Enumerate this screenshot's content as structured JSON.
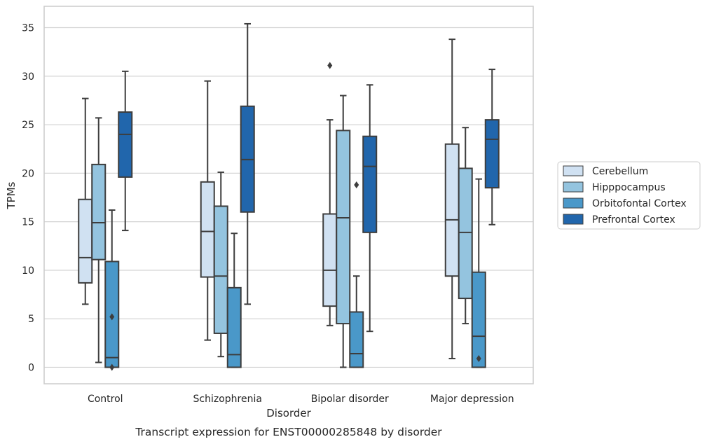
{
  "chart_data": {
    "type": "boxplot",
    "title": "",
    "caption": "Transcript expression for ENST00000285848 by disorder",
    "xlabel": "Disorder",
    "ylabel": "TPMs",
    "ylim": [
      -1.7,
      37.2
    ],
    "yticks": [
      0,
      5,
      10,
      15,
      20,
      25,
      30,
      35
    ],
    "grid": "horizontal",
    "legend_position": "right",
    "categories": [
      "Control",
      "Schizophrenia",
      "Bipolar disorder",
      "Major depression"
    ],
    "series": [
      {
        "name": "Cerebellum",
        "color": "#d0e1f2",
        "boxes": [
          {
            "whislo": 6.5,
            "q1": 8.7,
            "med": 11.3,
            "q3": 17.3,
            "whishi": 27.7,
            "fliers": []
          },
          {
            "whislo": 2.8,
            "q1": 9.3,
            "med": 14.0,
            "q3": 19.1,
            "whishi": 29.5,
            "fliers": []
          },
          {
            "whislo": 4.3,
            "q1": 6.3,
            "med": 10.0,
            "q3": 15.8,
            "whishi": 25.5,
            "fliers": [
              31.1
            ]
          },
          {
            "whislo": 0.9,
            "q1": 9.4,
            "med": 15.2,
            "q3": 23.0,
            "whishi": 33.8,
            "fliers": []
          }
        ]
      },
      {
        "name": "Hipppocampus",
        "color": "#94c4df",
        "boxes": [
          {
            "whislo": 0.5,
            "q1": 11.1,
            "med": 14.9,
            "q3": 20.9,
            "whishi": 25.7,
            "fliers": []
          },
          {
            "whislo": 1.1,
            "q1": 3.5,
            "med": 9.4,
            "q3": 16.6,
            "whishi": 20.1,
            "fliers": []
          },
          {
            "whislo": 0.0,
            "q1": 4.5,
            "med": 15.4,
            "q3": 24.4,
            "whishi": 28.0,
            "fliers": []
          },
          {
            "whislo": 4.5,
            "q1": 7.1,
            "med": 13.9,
            "q3": 20.5,
            "whishi": 24.7,
            "fliers": []
          }
        ]
      },
      {
        "name": "Orbitofontal Cortex",
        "color": "#4a98c9",
        "boxes": [
          {
            "whislo": 0.0,
            "q1": 0.0,
            "med": 1.0,
            "q3": 10.9,
            "whishi": 16.2,
            "fliers": [
              5.2,
              0.0
            ]
          },
          {
            "whislo": 0.0,
            "q1": 0.0,
            "med": 1.3,
            "q3": 8.2,
            "whishi": 13.8,
            "fliers": []
          },
          {
            "whislo": 0.0,
            "q1": 0.0,
            "med": 1.4,
            "q3": 5.7,
            "whishi": 9.4,
            "fliers": [
              18.8
            ]
          },
          {
            "whislo": 0.0,
            "q1": 0.0,
            "med": 3.2,
            "q3": 9.8,
            "whishi": 19.4,
            "fliers": [
              0.9
            ]
          }
        ]
      },
      {
        "name": "Prefrontal Cortex",
        "color": "#2166ac",
        "boxes": [
          {
            "whislo": 14.1,
            "q1": 19.6,
            "med": 24.0,
            "q3": 26.3,
            "whishi": 30.5,
            "fliers": []
          },
          {
            "whislo": 6.5,
            "q1": 16.0,
            "med": 21.4,
            "q3": 26.9,
            "whishi": 35.4,
            "fliers": []
          },
          {
            "whislo": 3.7,
            "q1": 13.9,
            "med": 20.7,
            "q3": 23.8,
            "whishi": 29.1,
            "fliers": []
          },
          {
            "whislo": 14.7,
            "q1": 18.5,
            "med": 23.5,
            "q3": 25.5,
            "whishi": 30.7,
            "fliers": []
          }
        ]
      }
    ]
  }
}
